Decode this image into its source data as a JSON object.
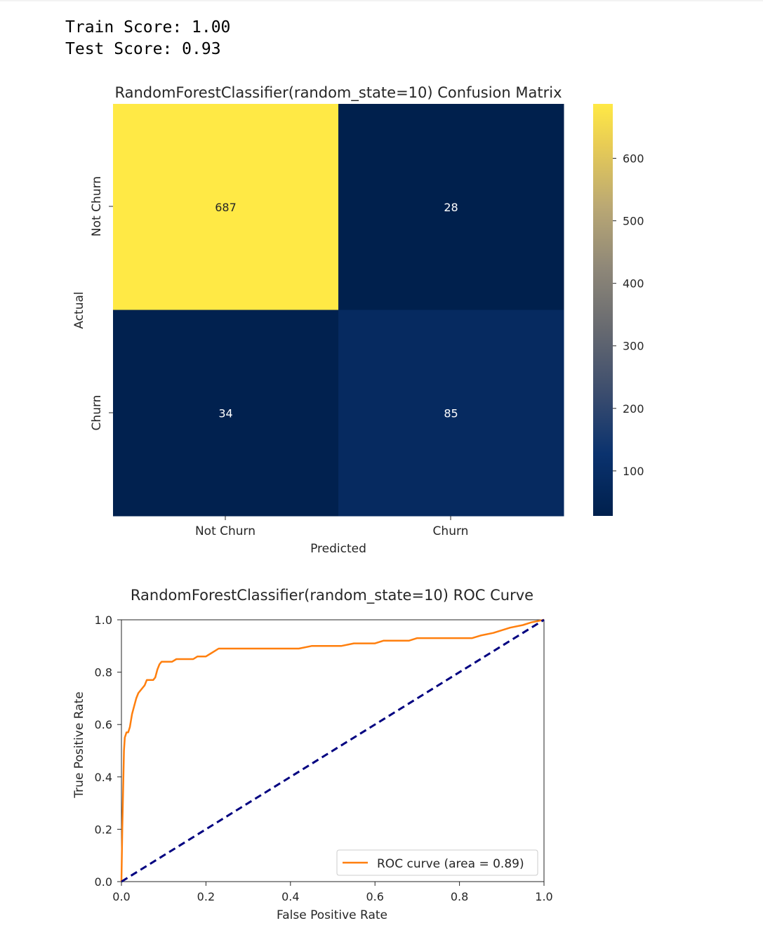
{
  "console": {
    "train_score": "Train Score: 1.00",
    "test_score": "Test Score: 0.93"
  },
  "chart_data": [
    {
      "type": "heatmap",
      "title": "RandomForestClassifier(random_state=10) Confusion Matrix",
      "xlabel": "Predicted",
      "ylabel": "Actual",
      "x_categories": [
        "Not Churn",
        "Churn"
      ],
      "y_categories": [
        "Not Churn",
        "Churn"
      ],
      "values": [
        [
          687,
          28
        ],
        [
          34,
          85
        ]
      ],
      "colormap": "cividis",
      "colorbar": {
        "min": 28,
        "max": 687,
        "ticks": [
          100,
          200,
          300,
          400,
          500,
          600
        ]
      }
    },
    {
      "type": "line",
      "title": "RandomForestClassifier(random_state=10) ROC Curve",
      "xlabel": "False Positive Rate",
      "ylabel": "True Positive Rate",
      "xlim": [
        0.0,
        1.0
      ],
      "ylim": [
        0.0,
        1.0
      ],
      "xticks": [
        "0.0",
        "0.2",
        "0.4",
        "0.6",
        "0.8",
        "1.0"
      ],
      "yticks": [
        "0.0",
        "0.2",
        "0.4",
        "0.6",
        "0.8",
        "1.0"
      ],
      "legend": "lower right",
      "series": [
        {
          "name": "ROC curve (area = 0.89)",
          "color": "#ff7f0e",
          "x": [
            0.0,
            0.002,
            0.004,
            0.006,
            0.008,
            0.01,
            0.012,
            0.016,
            0.02,
            0.025,
            0.03,
            0.035,
            0.04,
            0.05,
            0.055,
            0.06,
            0.07,
            0.075,
            0.08,
            0.085,
            0.09,
            0.095,
            0.1,
            0.11,
            0.12,
            0.13,
            0.14,
            0.15,
            0.16,
            0.17,
            0.18,
            0.19,
            0.2,
            0.21,
            0.22,
            0.23,
            0.25,
            0.3,
            0.35,
            0.38,
            0.4,
            0.42,
            0.45,
            0.5,
            0.52,
            0.55,
            0.57,
            0.6,
            0.62,
            0.65,
            0.68,
            0.7,
            0.75,
            0.8,
            0.815,
            0.83,
            0.85,
            0.88,
            0.9,
            0.92,
            0.95,
            0.97,
            1.0
          ],
          "y": [
            0.0,
            0.2,
            0.35,
            0.5,
            0.55,
            0.56,
            0.57,
            0.57,
            0.59,
            0.64,
            0.67,
            0.7,
            0.72,
            0.74,
            0.75,
            0.77,
            0.77,
            0.77,
            0.78,
            0.81,
            0.83,
            0.84,
            0.84,
            0.84,
            0.84,
            0.85,
            0.85,
            0.85,
            0.85,
            0.85,
            0.86,
            0.86,
            0.86,
            0.87,
            0.88,
            0.89,
            0.89,
            0.89,
            0.89,
            0.89,
            0.89,
            0.89,
            0.9,
            0.9,
            0.9,
            0.91,
            0.91,
            0.91,
            0.92,
            0.92,
            0.92,
            0.93,
            0.93,
            0.93,
            0.93,
            0.93,
            0.94,
            0.95,
            0.96,
            0.97,
            0.98,
            0.99,
            1.0
          ]
        },
        {
          "name": "",
          "color": "#000080",
          "style": "dashed",
          "x": [
            0.0,
            1.0
          ],
          "y": [
            0.0,
            1.0
          ]
        }
      ]
    }
  ]
}
